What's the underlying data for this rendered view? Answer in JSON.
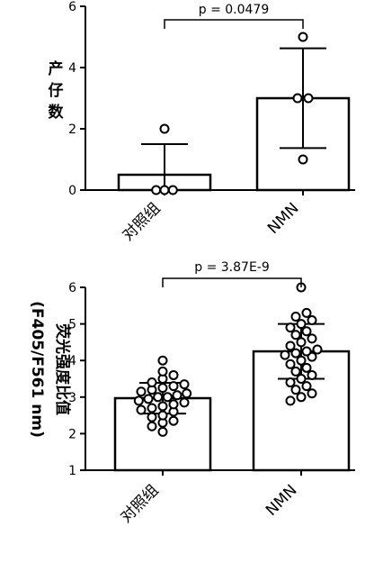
{
  "chart_data": [
    {
      "type": "bar",
      "panel": "top",
      "categories": [
        "对照组",
        "NMN"
      ],
      "ylabel": "产仔数",
      "ylabel_lines": [
        "产",
        "仔",
        "数"
      ],
      "ylim": [
        0,
        6
      ],
      "yticks": [
        "0",
        "2",
        "4",
        "6"
      ],
      "series": [
        {
          "values": [
            0.5,
            3.0
          ],
          "error": [
            1.0,
            1.63
          ]
        }
      ],
      "points": [
        [
          0,
          0,
          2,
          0
        ],
        [
          5,
          3,
          3,
          1
        ]
      ],
      "annotation": "p = 0.0479"
    },
    {
      "type": "bar",
      "panel": "bottom",
      "categories": [
        "对照组",
        "NMN"
      ],
      "ylabel": "荧光强度比值 (F405/F561 nm)",
      "ylabel_lines": [
        "荧光强度比值",
        "(F405/F561 nm)"
      ],
      "ylim": [
        1,
        6
      ],
      "yticks": [
        "1",
        "2",
        "3",
        "4",
        "5",
        "6"
      ],
      "series": [
        {
          "values": [
            2.97,
            4.25
          ],
          "error": [
            0.42,
            0.75
          ]
        }
      ],
      "points": [
        [
          2.05,
          2.2,
          2.3,
          2.35,
          2.45,
          2.5,
          2.6,
          2.65,
          2.7,
          2.75,
          2.8,
          2.85,
          2.9,
          2.95,
          3.0,
          3.0,
          3.05,
          3.1,
          3.15,
          3.2,
          3.25,
          3.3,
          3.35,
          3.4,
          3.5,
          3.6,
          3.7,
          4.0
        ],
        [
          2.9,
          3.0,
          3.1,
          3.2,
          3.3,
          3.4,
          3.5,
          3.6,
          3.7,
          3.8,
          3.9,
          4.0,
          4.1,
          4.15,
          4.2,
          4.25,
          4.3,
          4.4,
          4.5,
          4.6,
          4.7,
          4.8,
          4.9,
          5.0,
          5.1,
          5.2,
          5.3,
          6.0
        ]
      ],
      "annotation": "p = 3.87E-9"
    }
  ]
}
